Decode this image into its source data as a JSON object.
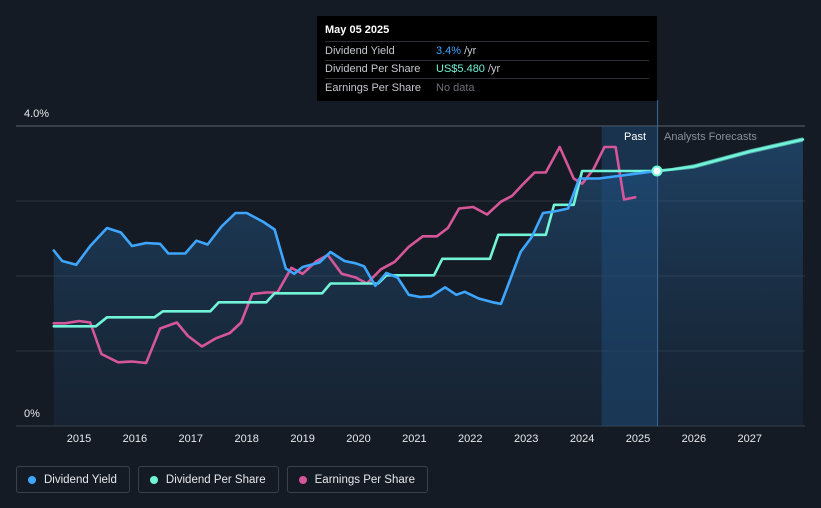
{
  "tooltip": {
    "date": "May 05 2025",
    "rows": [
      {
        "label": "Dividend Yield",
        "value": "3.4%",
        "unit": "/yr"
      },
      {
        "label": "Dividend Per Share",
        "value": "US$5.480",
        "unit": "/yr"
      },
      {
        "label": "Earnings Per Share",
        "value": "No data",
        "unit": ""
      }
    ]
  },
  "legend": [
    {
      "label": "Dividend Yield",
      "color": "#3ea6ff"
    },
    {
      "label": "Dividend Per Share",
      "color": "#72f4d8"
    },
    {
      "label": "Earnings Per Share",
      "color": "#d6569a"
    }
  ],
  "regions": {
    "past": "Past",
    "forecast": "Analysts Forecasts"
  },
  "chart_data": {
    "type": "line",
    "y_tick_labels": [
      "4.0%",
      "0%"
    ],
    "ylim": [
      0,
      4.0
    ],
    "x_tick_labels": [
      "2015",
      "2016",
      "2017",
      "2018",
      "2019",
      "2020",
      "2021",
      "2022",
      "2023",
      "2024",
      "2025",
      "2026",
      "2027"
    ],
    "xlim": [
      2014.5,
      2027.95
    ],
    "grid": true,
    "legend_position": "bottom-left",
    "highlight": {
      "start": 2024.35,
      "end": 2025.35,
      "date": 2025.34
    },
    "series": [
      {
        "name": "Dividend Yield",
        "color": "#3ea6ff",
        "points": [
          [
            2014.55,
            2.34
          ],
          [
            2014.7,
            2.2
          ],
          [
            2014.95,
            2.15
          ],
          [
            2015.2,
            2.4
          ],
          [
            2015.5,
            2.64
          ],
          [
            2015.75,
            2.58
          ],
          [
            2015.95,
            2.4
          ],
          [
            2016.2,
            2.44
          ],
          [
            2016.45,
            2.43
          ],
          [
            2016.6,
            2.3
          ],
          [
            2016.9,
            2.3
          ],
          [
            2017.1,
            2.47
          ],
          [
            2017.3,
            2.42
          ],
          [
            2017.55,
            2.66
          ],
          [
            2017.8,
            2.84
          ],
          [
            2018.0,
            2.84
          ],
          [
            2018.3,
            2.72
          ],
          [
            2018.5,
            2.62
          ],
          [
            2018.7,
            2.1
          ],
          [
            2018.85,
            2.03
          ],
          [
            2019.0,
            2.12
          ],
          [
            2019.3,
            2.18
          ],
          [
            2019.5,
            2.32
          ],
          [
            2019.75,
            2.2
          ],
          [
            2019.95,
            2.17
          ],
          [
            2020.1,
            2.13
          ],
          [
            2020.3,
            1.87
          ],
          [
            2020.5,
            2.04
          ],
          [
            2020.7,
            1.98
          ],
          [
            2020.9,
            1.75
          ],
          [
            2021.1,
            1.72
          ],
          [
            2021.3,
            1.73
          ],
          [
            2021.55,
            1.85
          ],
          [
            2021.75,
            1.75
          ],
          [
            2021.9,
            1.79
          ],
          [
            2022.15,
            1.7
          ],
          [
            2022.4,
            1.65
          ],
          [
            2022.55,
            1.63
          ],
          [
            2022.9,
            2.32
          ],
          [
            2023.1,
            2.52
          ],
          [
            2023.3,
            2.84
          ],
          [
            2023.5,
            2.86
          ],
          [
            2023.75,
            2.9
          ],
          [
            2023.95,
            3.3
          ],
          [
            2024.1,
            3.3
          ],
          [
            2024.3,
            3.3
          ],
          [
            2025.34,
            3.4
          ]
        ]
      },
      {
        "name": "Dividend Per Share",
        "color": "#72f4d8",
        "points": [
          [
            2014.55,
            1.33
          ],
          [
            2015.3,
            1.33
          ],
          [
            2015.5,
            1.45
          ],
          [
            2016.35,
            1.45
          ],
          [
            2016.5,
            1.53
          ],
          [
            2017.35,
            1.53
          ],
          [
            2017.5,
            1.65
          ],
          [
            2018.35,
            1.65
          ],
          [
            2018.5,
            1.77
          ],
          [
            2019.35,
            1.77
          ],
          [
            2019.5,
            1.9
          ],
          [
            2020.35,
            1.9
          ],
          [
            2020.5,
            2.01
          ],
          [
            2021.35,
            2.01
          ],
          [
            2021.5,
            2.23
          ],
          [
            2022.35,
            2.23
          ],
          [
            2022.5,
            2.55
          ],
          [
            2023.35,
            2.55
          ],
          [
            2023.5,
            2.95
          ],
          [
            2023.85,
            2.95
          ],
          [
            2024.0,
            3.4
          ],
          [
            2025.34,
            3.4
          ],
          [
            2025.6,
            3.42
          ],
          [
            2026.0,
            3.46
          ],
          [
            2026.5,
            3.56
          ],
          [
            2027.0,
            3.66
          ],
          [
            2027.95,
            3.82
          ]
        ]
      },
      {
        "name": "Earnings Per Share",
        "color": "#d6569a",
        "points": [
          [
            2014.55,
            1.37
          ],
          [
            2014.75,
            1.37
          ],
          [
            2015.0,
            1.4
          ],
          [
            2015.2,
            1.38
          ],
          [
            2015.4,
            0.96
          ],
          [
            2015.7,
            0.85
          ],
          [
            2015.95,
            0.86
          ],
          [
            2016.2,
            0.84
          ],
          [
            2016.45,
            1.3
          ],
          [
            2016.75,
            1.38
          ],
          [
            2016.95,
            1.2
          ],
          [
            2017.2,
            1.06
          ],
          [
            2017.45,
            1.17
          ],
          [
            2017.7,
            1.24
          ],
          [
            2017.9,
            1.38
          ],
          [
            2018.1,
            1.76
          ],
          [
            2018.35,
            1.78
          ],
          [
            2018.55,
            1.78
          ],
          [
            2018.8,
            2.11
          ],
          [
            2019.0,
            2.03
          ],
          [
            2019.25,
            2.2
          ],
          [
            2019.45,
            2.28
          ],
          [
            2019.7,
            2.03
          ],
          [
            2019.95,
            1.98
          ],
          [
            2020.15,
            1.9
          ],
          [
            2020.4,
            2.09
          ],
          [
            2020.65,
            2.19
          ],
          [
            2020.9,
            2.39
          ],
          [
            2021.15,
            2.53
          ],
          [
            2021.4,
            2.53
          ],
          [
            2021.6,
            2.64
          ],
          [
            2021.8,
            2.9
          ],
          [
            2022.05,
            2.92
          ],
          [
            2022.3,
            2.82
          ],
          [
            2022.55,
            2.99
          ],
          [
            2022.75,
            3.07
          ],
          [
            2022.95,
            3.23
          ],
          [
            2023.15,
            3.38
          ],
          [
            2023.35,
            3.38
          ],
          [
            2023.6,
            3.72
          ],
          [
            2023.85,
            3.3
          ],
          [
            2024.0,
            3.23
          ],
          [
            2024.2,
            3.42
          ],
          [
            2024.4,
            3.72
          ],
          [
            2024.6,
            3.72
          ],
          [
            2024.75,
            3.02
          ],
          [
            2024.95,
            3.05
          ]
        ]
      }
    ],
    "forecast_band": {
      "start": 2025.34,
      "color": "#72f4d8",
      "upper": [
        [
          2025.34,
          3.42
        ],
        [
          2025.6,
          3.44
        ],
        [
          2026.0,
          3.49
        ],
        [
          2026.5,
          3.59
        ],
        [
          2027.0,
          3.69
        ],
        [
          2027.95,
          3.85
        ]
      ],
      "lower": [
        [
          2025.34,
          3.38
        ],
        [
          2025.6,
          3.4
        ],
        [
          2026.0,
          3.43
        ],
        [
          2026.5,
          3.53
        ],
        [
          2027.0,
          3.63
        ],
        [
          2027.95,
          3.79
        ]
      ]
    }
  }
}
